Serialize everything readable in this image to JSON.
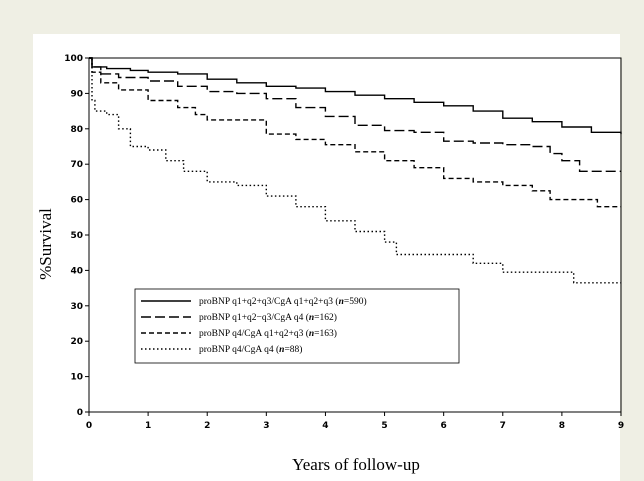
{
  "chart_data": {
    "type": "line",
    "title": "",
    "xlabel": "Years of follow-up",
    "ylabel": "%Survival",
    "xlim": [
      0,
      9
    ],
    "ylim": [
      0,
      100
    ],
    "x_ticks": [
      0,
      1,
      2,
      3,
      4,
      5,
      6,
      7,
      8,
      9
    ],
    "y_ticks": [
      0,
      10,
      20,
      30,
      40,
      50,
      60,
      70,
      80,
      90,
      100
    ],
    "grid": false,
    "legend_position": "bottom-left",
    "series": [
      {
        "name": "proBNP q1+q2+q3/CgA q1+q2+q3 (n=590)",
        "line_style": "solid",
        "x": [
          0,
          0.05,
          0.3,
          0.7,
          1.0,
          1.5,
          2.0,
          2.5,
          3.0,
          3.5,
          4.0,
          4.5,
          5.0,
          5.5,
          6.0,
          6.5,
          7.0,
          7.5,
          8.0,
          8.5,
          9.0
        ],
        "y": [
          100,
          97.5,
          97,
          96.5,
          96,
          95.5,
          94,
          93,
          92,
          91.5,
          90.5,
          89.5,
          88.5,
          87.5,
          86.5,
          85,
          83,
          82,
          80.5,
          79,
          78.5
        ]
      },
      {
        "name": "proBNP q1+q2−q3/CgA q4 (n=162)",
        "line_style": "long-dash",
        "x": [
          0,
          0.05,
          0.2,
          0.5,
          1.0,
          1.5,
          2.0,
          2.5,
          3.0,
          3.5,
          4.0,
          4.5,
          5.0,
          5.5,
          6.0,
          6.5,
          7.0,
          7.5,
          7.8,
          8.0,
          8.3,
          8.6,
          9.0
        ],
        "y": [
          100,
          97.5,
          95.5,
          94.5,
          93.5,
          92,
          90.5,
          90,
          88.5,
          86,
          83.5,
          81,
          79.5,
          79,
          76.5,
          76,
          75.5,
          75,
          73,
          71,
          68,
          68,
          68
        ]
      },
      {
        "name": "proBNP q4/CgA q1+q2+q3 (n=163)",
        "line_style": "short-dash",
        "x": [
          0,
          0.05,
          0.2,
          0.5,
          1.0,
          1.5,
          1.8,
          2.0,
          2.5,
          3.0,
          3.5,
          4.0,
          4.5,
          5.0,
          5.5,
          6.0,
          6.5,
          7.0,
          7.5,
          7.8,
          8.0,
          8.3,
          8.6,
          9.0
        ],
        "y": [
          100,
          96,
          93,
          91,
          88,
          86,
          84,
          82.5,
          82.5,
          78.5,
          77,
          75.5,
          73.5,
          71,
          69,
          66,
          65,
          64,
          62.5,
          60,
          60,
          60,
          58,
          58
        ]
      },
      {
        "name": "proBNP q4/CgA q4 (n=88)",
        "line_style": "dotted",
        "x": [
          0,
          0.05,
          0.1,
          0.3,
          0.5,
          0.7,
          1.0,
          1.3,
          1.6,
          2.0,
          2.5,
          3.0,
          3.5,
          4.0,
          4.5,
          5.0,
          5.2,
          5.5,
          6.0,
          6.5,
          7.0,
          7.5,
          8.0,
          8.2,
          8.5,
          9.0
        ],
        "y": [
          100,
          88,
          85,
          84,
          80,
          75,
          74,
          71,
          68,
          65,
          64,
          61,
          58,
          54,
          51,
          48,
          44.5,
          44.5,
          44.5,
          42,
          39.5,
          39.5,
          39.5,
          36.5,
          36.5,
          36.5
        ]
      }
    ]
  },
  "legend": {
    "items": [
      {
        "prefix": "proBNP  q1+q2+q3/CgA  q1+q2+q3  (",
        "n_label": "n",
        "suffix": "=590)"
      },
      {
        "prefix": "proBNP  q1+q2−q3/CgA  q4  (",
        "n_label": "n",
        "suffix": "=162)"
      },
      {
        "prefix": "proBNP  q4/CgA  q1+q2+q3  (",
        "n_label": "n",
        "suffix": "=163)"
      },
      {
        "prefix": "proBNP  q4/CgA  q4  (",
        "n_label": "n",
        "suffix": "=88)"
      }
    ]
  }
}
